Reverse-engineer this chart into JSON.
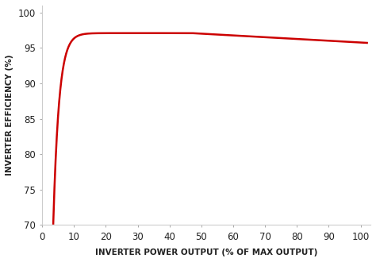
{
  "xlabel": "INVERTER POWER OUTPUT (% OF MAX OUTPUT)",
  "ylabel": "INVERTER EFFICIENCY (%)",
  "xlim": [
    0,
    103
  ],
  "ylim": [
    70,
    101
  ],
  "xticks": [
    0,
    10,
    20,
    30,
    40,
    50,
    60,
    70,
    80,
    90,
    100
  ],
  "yticks": [
    70,
    75,
    80,
    85,
    90,
    95,
    100
  ],
  "line_color": "#cc0000",
  "line_width": 1.8,
  "bg_color": "#ffffff",
  "xlabel_fontsize": 7.5,
  "ylabel_fontsize": 7.5,
  "tick_fontsize": 8.5,
  "curve_x_start": 3.5,
  "curve_x_end": 102.0,
  "curve_start_y": 70.2,
  "curve_peak_y": 97.1,
  "curve_peak_x": 47.0,
  "curve_end_y": 95.7
}
